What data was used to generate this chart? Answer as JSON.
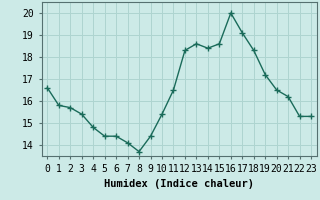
{
  "x": [
    0,
    1,
    2,
    3,
    4,
    5,
    6,
    7,
    8,
    9,
    10,
    11,
    12,
    13,
    14,
    15,
    16,
    17,
    18,
    19,
    20,
    21,
    22,
    23
  ],
  "y": [
    16.6,
    15.8,
    15.7,
    15.4,
    14.8,
    14.4,
    14.4,
    14.1,
    13.7,
    14.4,
    15.4,
    16.5,
    18.3,
    18.6,
    18.4,
    18.6,
    20.0,
    19.1,
    18.3,
    17.2,
    16.5,
    16.2,
    15.3,
    15.3
  ],
  "line_color": "#1a6b5a",
  "marker": "+",
  "marker_size": 4,
  "marker_lw": 1.0,
  "bg_color": "#cceae7",
  "grid_color": "#aed4d0",
  "xlabel": "Humidex (Indice chaleur)",
  "ylabel_ticks": [
    14,
    15,
    16,
    17,
    18,
    19,
    20
  ],
  "xlim": [
    -0.5,
    23.5
  ],
  "ylim": [
    13.5,
    20.5
  ],
  "xlabel_fontsize": 7.5,
  "tick_fontsize": 7
}
